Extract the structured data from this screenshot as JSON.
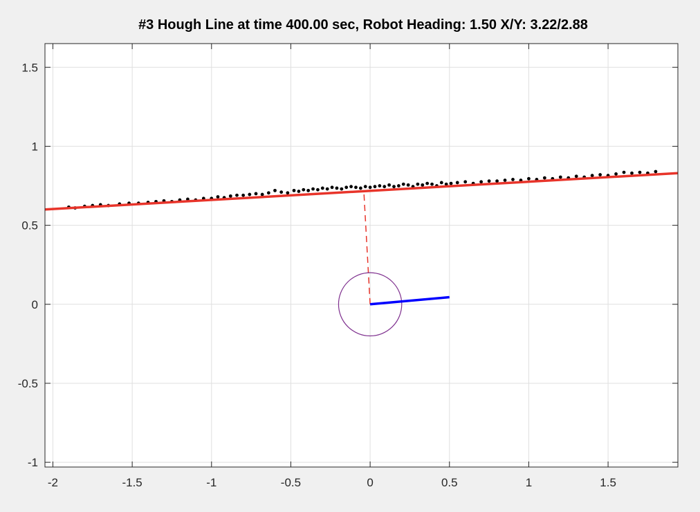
{
  "chart_data": {
    "type": "scatter",
    "title": "#3 Hough Line at time 400.00 sec, Robot Heading: 1.50 X/Y: 3.22/2.88",
    "xlabel": "",
    "ylabel": "",
    "xlim": [
      -2.05,
      1.94
    ],
    "ylim": [
      -1.03,
      1.65
    ],
    "grid": true,
    "x_ticks": [
      -2,
      -1.5,
      -1,
      -0.5,
      0,
      0.5,
      1,
      1.5
    ],
    "x_tick_labels": [
      "-2",
      "-1.5",
      "-1",
      "-0.5",
      "0",
      "0.5",
      "1",
      "1.5"
    ],
    "y_ticks": [
      -1,
      -0.5,
      0,
      0.5,
      1,
      1.5
    ],
    "y_tick_labels": [
      "-1",
      "-0.5",
      "0",
      "0.5",
      "1",
      "1.5"
    ],
    "colors": {
      "hough_line": "#e8342a",
      "perpendicular": "#e8342a",
      "heading": "#0000ff",
      "robot_circle": "#7e2f8e",
      "points": "#000000",
      "grid": "#dfdfdf",
      "axes": "#262626"
    },
    "hough_line": {
      "x": [
        -2.05,
        1.94
      ],
      "y": [
        0.6,
        0.83
      ]
    },
    "perpendicular": {
      "x": [
        0,
        -0.04
      ],
      "y": [
        0,
        0.72
      ]
    },
    "heading_segment": {
      "x": [
        0,
        0.5
      ],
      "y": [
        0,
        0.045
      ]
    },
    "robot_circle": {
      "cx": 0,
      "cy": 0,
      "r": 0.2
    },
    "points": {
      "x": [
        -1.9,
        -1.86,
        -1.8,
        -1.75,
        -1.7,
        -1.65,
        -1.58,
        -1.52,
        -1.46,
        -1.4,
        -1.35,
        -1.3,
        -1.25,
        -1.2,
        -1.15,
        -1.1,
        -1.05,
        -1.0,
        -0.96,
        -0.92,
        -0.88,
        -0.84,
        -0.8,
        -0.76,
        -0.72,
        -0.68,
        -0.64,
        -0.6,
        -0.56,
        -0.52,
        -0.48,
        -0.45,
        -0.42,
        -0.39,
        -0.36,
        -0.33,
        -0.3,
        -0.27,
        -0.24,
        -0.21,
        -0.18,
        -0.15,
        -0.12,
        -0.09,
        -0.06,
        -0.03,
        0.0,
        0.03,
        0.06,
        0.09,
        0.12,
        0.15,
        0.18,
        0.21,
        0.24,
        0.27,
        0.3,
        0.33,
        0.36,
        0.39,
        0.42,
        0.45,
        0.48,
        0.51,
        0.55,
        0.6,
        0.65,
        0.7,
        0.75,
        0.8,
        0.85,
        0.9,
        0.95,
        1.0,
        1.05,
        1.1,
        1.15,
        1.2,
        1.25,
        1.3,
        1.35,
        1.4,
        1.45,
        1.5,
        1.55,
        1.6,
        1.65,
        1.7,
        1.75,
        1.8
      ],
      "y": [
        0.615,
        0.61,
        0.62,
        0.625,
        0.63,
        0.625,
        0.635,
        0.64,
        0.64,
        0.645,
        0.65,
        0.655,
        0.65,
        0.66,
        0.665,
        0.66,
        0.67,
        0.67,
        0.68,
        0.675,
        0.685,
        0.69,
        0.69,
        0.695,
        0.7,
        0.695,
        0.705,
        0.72,
        0.71,
        0.705,
        0.72,
        0.715,
        0.725,
        0.72,
        0.73,
        0.725,
        0.735,
        0.73,
        0.74,
        0.735,
        0.73,
        0.74,
        0.745,
        0.74,
        0.735,
        0.745,
        0.74,
        0.745,
        0.75,
        0.745,
        0.755,
        0.745,
        0.75,
        0.76,
        0.755,
        0.745,
        0.76,
        0.755,
        0.765,
        0.76,
        0.75,
        0.77,
        0.76,
        0.765,
        0.77,
        0.775,
        0.765,
        0.775,
        0.78,
        0.78,
        0.785,
        0.79,
        0.785,
        0.795,
        0.79,
        0.8,
        0.795,
        0.805,
        0.8,
        0.81,
        0.805,
        0.815,
        0.82,
        0.815,
        0.825,
        0.835,
        0.83,
        0.835,
        0.83,
        0.84
      ]
    }
  }
}
